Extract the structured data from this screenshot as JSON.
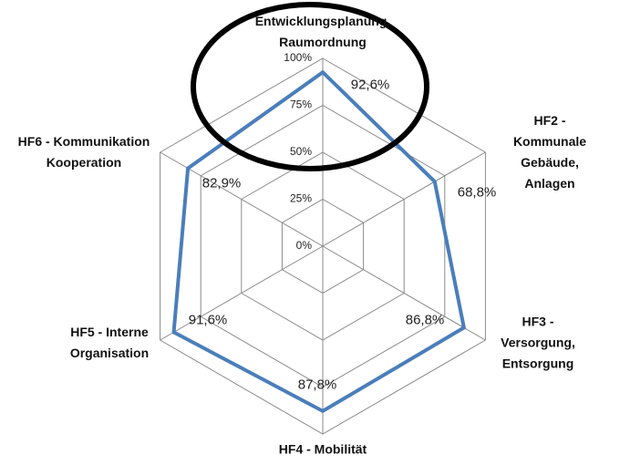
{
  "chart_data": {
    "type": "radar",
    "categories": [
      "Entwicklungsplanung,\nRaumordnung",
      "HF2 - Kommunale\nGebäude, Anlagen",
      "HF3 - Versorgung,\nEntsorgung",
      "HF4 - Mobilität",
      "HF5 - Interne\nOrganisation",
      "HF6 - Kommunikation\nKooperation"
    ],
    "values": [
      92.6,
      68.8,
      86.8,
      87.8,
      91.6,
      82.9
    ],
    "value_labels": [
      "92,6%",
      "68,8%",
      "86,8%",
      "87,8%",
      "91,6%",
      "82,9%"
    ],
    "color": "#4a7ebb",
    "ylim": [
      0,
      100
    ],
    "yticks": [
      {
        "value": 0,
        "label": "0%"
      },
      {
        "value": 25,
        "label": "25%"
      },
      {
        "value": 50,
        "label": "50%"
      },
      {
        "value": 75,
        "label": "75%"
      },
      {
        "value": 100,
        "label": "100%"
      }
    ],
    "grid": true
  }
}
